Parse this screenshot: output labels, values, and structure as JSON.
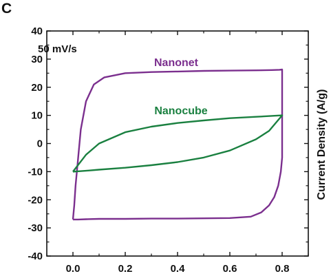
{
  "panel_label": "C",
  "chart_data": {
    "type": "line",
    "title": "",
    "xlabel": "",
    "ylabel": "Current Density (A/g)",
    "xlim": [
      -0.1,
      0.9
    ],
    "ylim": [
      -40,
      40
    ],
    "x_ticks": [
      "0.0",
      "0.2",
      "0.4",
      "0.6",
      "0.8"
    ],
    "y_ticks": [
      "-40",
      "-30",
      "-20",
      "-10",
      "0",
      "10",
      "20",
      "30",
      "40"
    ],
    "grid": false,
    "annotation": "50 mV/s",
    "series": [
      {
        "name": "Nanonet",
        "color": "#7b2f8e",
        "x": [
          0.0,
          0.005,
          0.01,
          0.02,
          0.03,
          0.05,
          0.08,
          0.12,
          0.2,
          0.3,
          0.4,
          0.5,
          0.6,
          0.7,
          0.76,
          0.79,
          0.8,
          0.8,
          0.795,
          0.785,
          0.77,
          0.75,
          0.72,
          0.68,
          0.6,
          0.5,
          0.4,
          0.3,
          0.2,
          0.1,
          0.05,
          0.02,
          0.0,
          0.0
        ],
        "y": [
          -27,
          -22,
          -15,
          -5,
          5,
          15,
          21,
          23.5,
          25,
          25.4,
          25.6,
          25.8,
          25.9,
          26,
          26.1,
          26.2,
          26.3,
          -5,
          -10,
          -15,
          -19,
          -22,
          -24.5,
          -26,
          -26.5,
          -26.6,
          -26.7,
          -26.7,
          -26.8,
          -26.8,
          -26.9,
          -27,
          -27,
          -27
        ]
      },
      {
        "name": "Nanocube",
        "color": "#1a8040",
        "x": [
          0.0,
          0.05,
          0.1,
          0.2,
          0.3,
          0.4,
          0.5,
          0.6,
          0.7,
          0.8,
          0.8,
          0.75,
          0.7,
          0.6,
          0.5,
          0.4,
          0.3,
          0.2,
          0.1,
          0.05,
          0.0
        ],
        "y": [
          -10,
          -4,
          0,
          4,
          6,
          7.3,
          8.2,
          9,
          9.5,
          10,
          10,
          4.5,
          1.5,
          -2.5,
          -5,
          -6.6,
          -7.7,
          -8.6,
          -9.3,
          -9.7,
          -10
        ]
      }
    ]
  }
}
